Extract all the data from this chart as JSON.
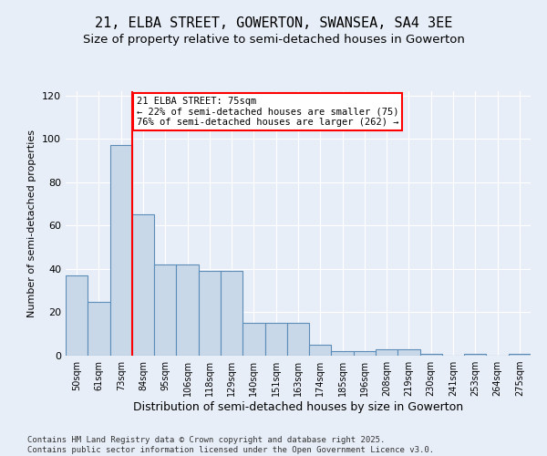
{
  "title": "21, ELBA STREET, GOWERTON, SWANSEA, SA4 3EE",
  "subtitle": "Size of property relative to semi-detached houses in Gowerton",
  "xlabel": "Distribution of semi-detached houses by size in Gowerton",
  "ylabel": "Number of semi-detached properties",
  "bins": [
    "50sqm",
    "61sqm",
    "73sqm",
    "84sqm",
    "95sqm",
    "106sqm",
    "118sqm",
    "129sqm",
    "140sqm",
    "151sqm",
    "163sqm",
    "174sqm",
    "185sqm",
    "196sqm",
    "208sqm",
    "219sqm",
    "230sqm",
    "241sqm",
    "253sqm",
    "264sqm",
    "275sqm"
  ],
  "values": [
    37,
    25,
    97,
    65,
    42,
    42,
    39,
    39,
    15,
    15,
    15,
    5,
    2,
    2,
    3,
    3,
    1,
    0,
    1,
    0,
    1
  ],
  "bar_color": "#c8d8e8",
  "bar_edge_color": "#5b8db8",
  "red_line_x": 2.5,
  "annotation_text": "21 ELBA STREET: 75sqm\n← 22% of semi-detached houses are smaller (75)\n76% of semi-detached houses are larger (262) →",
  "annotation_box_color": "white",
  "annotation_box_edge_color": "red",
  "ylim": [
    0,
    122
  ],
  "yticks": [
    0,
    20,
    40,
    60,
    80,
    100,
    120
  ],
  "background_color": "#e8eef8",
  "grid_color": "white",
  "footer": "Contains HM Land Registry data © Crown copyright and database right 2025.\nContains public sector information licensed under the Open Government Licence v3.0.",
  "title_fontsize": 11,
  "subtitle_fontsize": 9.5,
  "xlabel_fontsize": 9,
  "ylabel_fontsize": 8,
  "footer_fontsize": 6.5,
  "annot_fontsize": 7.5
}
